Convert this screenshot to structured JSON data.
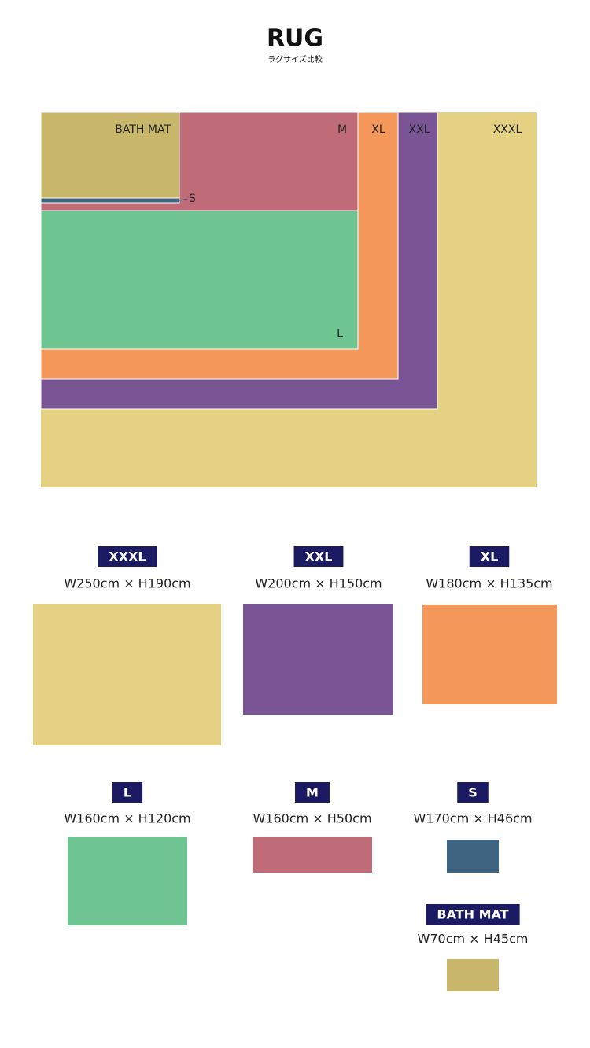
{
  "header": {
    "title": "RUG",
    "subtitle": "ラグサイズ比較"
  },
  "diagram": {
    "labels": [
      "BATH MAT",
      "M",
      "XL",
      "XXL",
      "XXXL",
      "S",
      "L"
    ]
  },
  "sizes": [
    {
      "name": "XXXL",
      "dims": "W250cm × H190cm"
    },
    {
      "name": "XXL",
      "dims": "W200cm × H150cm"
    },
    {
      "name": "XL",
      "dims": "W180cm × H135cm"
    },
    {
      "name": "L",
      "dims": "W160cm × H120cm"
    },
    {
      "name": "M",
      "dims": "W160cm × H50cm"
    },
    {
      "name": "S",
      "dims": "W170cm × H46cm"
    },
    {
      "name": "BATH MAT",
      "dims": "W70cm × H45cm"
    }
  ]
}
